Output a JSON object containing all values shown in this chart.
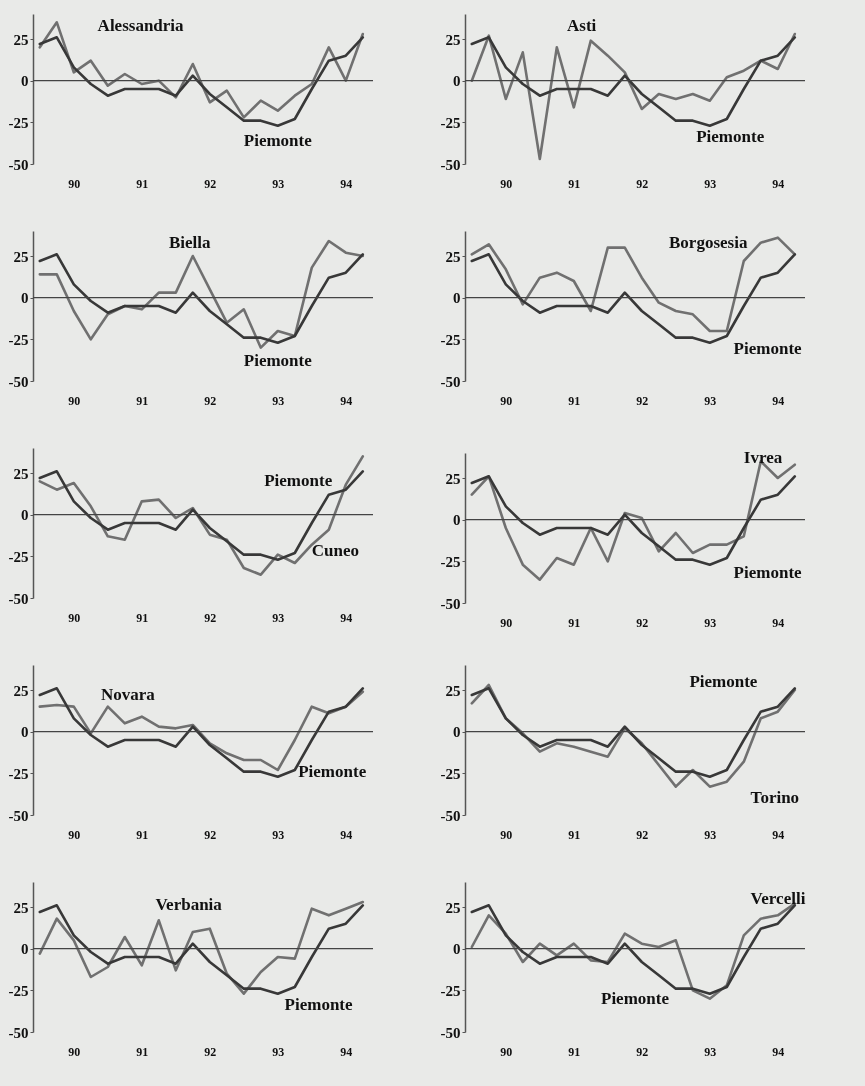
{
  "chart_data": [
    {
      "type": "line",
      "x": [
        90,
        90.25,
        90.5,
        90.75,
        91,
        91.25,
        91.5,
        91.75,
        92,
        92.25,
        92.5,
        92.75,
        93,
        93.25,
        93.5,
        93.75,
        94,
        94.25,
        94.5,
        94.75
      ],
      "xlim": [
        89.9,
        94.9
      ],
      "xticks": [
        {
          "value": 90.5,
          "label": "90"
        },
        {
          "value": 91.5,
          "label": "91"
        },
        {
          "value": 92.5,
          "label": "92"
        },
        {
          "value": 93.5,
          "label": "93"
        },
        {
          "value": 94.5,
          "label": "94"
        }
      ],
      "ylim": [
        -50,
        40
      ],
      "yticks": [
        -50,
        -25,
        0,
        25
      ],
      "ref_lines": [
        {
          "axis": "y",
          "value": 0
        }
      ],
      "grid": false,
      "legend": false,
      "series": [
        {
          "name": "Alessandria",
          "color": "#707070",
          "values": [
            20,
            35,
            5,
            12,
            -3,
            4,
            -2,
            0,
            -10,
            10,
            -13,
            -6,
            -22,
            -12,
            -18,
            -9,
            -2,
            20,
            0,
            28
          ]
        },
        {
          "name": "Piemonte",
          "color": "#383838",
          "values": [
            22,
            26,
            8,
            -2,
            -9,
            -5,
            -5,
            -5,
            -9,
            3,
            -8,
            -16,
            -24,
            -24,
            -27,
            -23,
            -5,
            12,
            15,
            26
          ]
        }
      ]
    },
    {
      "type": "line",
      "x": [
        90,
        90.25,
        90.5,
        90.75,
        91,
        91.25,
        91.5,
        91.75,
        92,
        92.25,
        92.5,
        92.75,
        93,
        93.25,
        93.5,
        93.75,
        94,
        94.25,
        94.5,
        94.75
      ],
      "xlim": [
        89.9,
        94.9
      ],
      "xticks": [
        {
          "value": 90.5,
          "label": "90"
        },
        {
          "value": 91.5,
          "label": "91"
        },
        {
          "value": 92.5,
          "label": "92"
        },
        {
          "value": 93.5,
          "label": "93"
        },
        {
          "value": 94.5,
          "label": "94"
        }
      ],
      "ylim": [
        -50,
        40
      ],
      "yticks": [
        -50,
        -25,
        0,
        25
      ],
      "ref_lines": [
        {
          "axis": "y",
          "value": 0
        }
      ],
      "grid": false,
      "legend": false,
      "series": [
        {
          "name": "Asti",
          "color": "#707070",
          "values": [
            0,
            27,
            -11,
            17,
            -47,
            20,
            -16,
            24,
            15,
            5,
            -17,
            -8,
            -11,
            -8,
            -12,
            2,
            6,
            12,
            7,
            28
          ]
        },
        {
          "name": "Piemonte",
          "color": "#383838",
          "values": [
            22,
            26,
            8,
            -2,
            -9,
            -5,
            -5,
            -5,
            -9,
            3,
            -8,
            -16,
            -24,
            -24,
            -27,
            -23,
            -5,
            12,
            15,
            26
          ]
        }
      ]
    },
    {
      "type": "line",
      "x": [
        90,
        90.25,
        90.5,
        90.75,
        91,
        91.25,
        91.5,
        91.75,
        92,
        92.25,
        92.5,
        92.75,
        93,
        93.25,
        93.5,
        93.75,
        94,
        94.25,
        94.5,
        94.75
      ],
      "xlim": [
        89.9,
        94.9
      ],
      "xticks": [
        {
          "value": 90.5,
          "label": "90"
        },
        {
          "value": 91.5,
          "label": "91"
        },
        {
          "value": 92.5,
          "label": "92"
        },
        {
          "value": 93.5,
          "label": "93"
        },
        {
          "value": 94.5,
          "label": "94"
        }
      ],
      "ylim": [
        -50,
        40
      ],
      "yticks": [
        -50,
        -25,
        0,
        25
      ],
      "ref_lines": [
        {
          "axis": "y",
          "value": 0
        }
      ],
      "grid": false,
      "legend": false,
      "series": [
        {
          "name": "Biella",
          "color": "#707070",
          "values": [
            14,
            14,
            -8,
            -25,
            -10,
            -5,
            -7,
            3,
            3,
            25,
            5,
            -15,
            -7,
            -30,
            -20,
            -23,
            18,
            34,
            27,
            25
          ]
        },
        {
          "name": "Piemonte",
          "color": "#383838",
          "values": [
            22,
            26,
            8,
            -2,
            -9,
            -5,
            -5,
            -5,
            -9,
            3,
            -8,
            -16,
            -24,
            -24,
            -27,
            -23,
            -5,
            12,
            15,
            26
          ]
        }
      ]
    },
    {
      "type": "line",
      "x": [
        90,
        90.25,
        90.5,
        90.75,
        91,
        91.25,
        91.5,
        91.75,
        92,
        92.25,
        92.5,
        92.75,
        93,
        93.25,
        93.5,
        93.75,
        94,
        94.25,
        94.5,
        94.75
      ],
      "xlim": [
        89.9,
        94.9
      ],
      "xticks": [
        {
          "value": 90.5,
          "label": "90"
        },
        {
          "value": 91.5,
          "label": "91"
        },
        {
          "value": 92.5,
          "label": "92"
        },
        {
          "value": 93.5,
          "label": "93"
        },
        {
          "value": 94.5,
          "label": "94"
        }
      ],
      "ylim": [
        -50,
        40
      ],
      "yticks": [
        -50,
        -25,
        0,
        25
      ],
      "ref_lines": [
        {
          "axis": "y",
          "value": 0
        }
      ],
      "grid": false,
      "legend": false,
      "series": [
        {
          "name": "Borgosesia",
          "color": "#707070",
          "values": [
            26,
            32,
            17,
            -4,
            12,
            15,
            10,
            -8,
            30,
            30,
            12,
            -3,
            -8,
            -10,
            -20,
            -20,
            22,
            33,
            36,
            26
          ]
        },
        {
          "name": "Piemonte",
          "color": "#383838",
          "values": [
            22,
            26,
            8,
            -2,
            -9,
            -5,
            -5,
            -5,
            -9,
            3,
            -8,
            -16,
            -24,
            -24,
            -27,
            -23,
            -5,
            12,
            15,
            26
          ]
        }
      ]
    },
    {
      "type": "line",
      "x": [
        90,
        90.25,
        90.5,
        90.75,
        91,
        91.25,
        91.5,
        91.75,
        92,
        92.25,
        92.5,
        92.75,
        93,
        93.25,
        93.5,
        93.75,
        94,
        94.25,
        94.5,
        94.75
      ],
      "xlim": [
        89.9,
        94.9
      ],
      "xticks": [
        {
          "value": 90.5,
          "label": "90"
        },
        {
          "value": 91.5,
          "label": "91"
        },
        {
          "value": 92.5,
          "label": "92"
        },
        {
          "value": 93.5,
          "label": "93"
        },
        {
          "value": 94.5,
          "label": "94"
        }
      ],
      "ylim": [
        -50,
        40
      ],
      "yticks": [
        -50,
        -25,
        0,
        25
      ],
      "ref_lines": [
        {
          "axis": "y",
          "value": 0
        }
      ],
      "grid": false,
      "legend": false,
      "series": [
        {
          "name": "Cuneo",
          "color": "#707070",
          "values": [
            20,
            15,
            19,
            5,
            -13,
            -15,
            8,
            9,
            -2,
            4,
            -12,
            -15,
            -32,
            -36,
            -24,
            -29,
            -18,
            -9,
            18,
            35
          ]
        },
        {
          "name": "Piemonte",
          "color": "#383838",
          "values": [
            22,
            26,
            8,
            -2,
            -9,
            -5,
            -5,
            -5,
            -9,
            3,
            -8,
            -16,
            -24,
            -24,
            -27,
            -23,
            -5,
            12,
            15,
            26
          ]
        }
      ]
    },
    {
      "type": "line",
      "x": [
        90,
        90.25,
        90.5,
        90.75,
        91,
        91.25,
        91.5,
        91.75,
        92,
        92.25,
        92.5,
        92.75,
        93,
        93.25,
        93.5,
        93.75,
        94,
        94.25,
        94.5,
        94.75
      ],
      "xlim": [
        89.9,
        94.9
      ],
      "xticks": [
        {
          "value": 90.5,
          "label": "90"
        },
        {
          "value": 91.5,
          "label": "91"
        },
        {
          "value": 92.5,
          "label": "92"
        },
        {
          "value": 93.5,
          "label": "93"
        },
        {
          "value": 94.5,
          "label": "94"
        }
      ],
      "ylim": [
        -50,
        40
      ],
      "yticks": [
        -50,
        -25,
        0,
        25
      ],
      "ref_lines": [
        {
          "axis": "y",
          "value": 0
        }
      ],
      "grid": false,
      "legend": false,
      "series": [
        {
          "name": "Ivrea",
          "color": "#707070",
          "values": [
            15,
            26,
            -5,
            -27,
            -36,
            -23,
            -27,
            -5,
            -25,
            4,
            1,
            -19,
            -8,
            -20,
            -15,
            -15,
            -10,
            35,
            25,
            33
          ]
        },
        {
          "name": "Piemonte",
          "color": "#383838",
          "values": [
            22,
            26,
            8,
            -2,
            -9,
            -5,
            -5,
            -5,
            -9,
            3,
            -8,
            -16,
            -24,
            -24,
            -27,
            -23,
            -5,
            12,
            15,
            26
          ]
        }
      ]
    },
    {
      "type": "line",
      "x": [
        90,
        90.25,
        90.5,
        90.75,
        91,
        91.25,
        91.5,
        91.75,
        92,
        92.25,
        92.5,
        92.75,
        93,
        93.25,
        93.5,
        93.75,
        94,
        94.25,
        94.5,
        94.75
      ],
      "xlim": [
        89.9,
        94.9
      ],
      "xticks": [
        {
          "value": 90.5,
          "label": "90"
        },
        {
          "value": 91.5,
          "label": "91"
        },
        {
          "value": 92.5,
          "label": "92"
        },
        {
          "value": 93.5,
          "label": "93"
        },
        {
          "value": 94.5,
          "label": "94"
        }
      ],
      "ylim": [
        -50,
        40
      ],
      "yticks": [
        -50,
        -25,
        0,
        25
      ],
      "ref_lines": [
        {
          "axis": "y",
          "value": 0
        }
      ],
      "grid": false,
      "legend": false,
      "series": [
        {
          "name": "Novara",
          "color": "#707070",
          "values": [
            15,
            16,
            15,
            -1,
            15,
            5,
            9,
            3,
            2,
            4,
            -7,
            -13,
            -17,
            -17,
            -23,
            -5,
            15,
            11,
            15,
            24
          ]
        },
        {
          "name": "Piemonte",
          "color": "#383838",
          "values": [
            22,
            26,
            8,
            -2,
            -9,
            -5,
            -5,
            -5,
            -9,
            3,
            -8,
            -16,
            -24,
            -24,
            -27,
            -23,
            -5,
            12,
            15,
            26
          ]
        }
      ]
    },
    {
      "type": "line",
      "x": [
        90,
        90.25,
        90.5,
        90.75,
        91,
        91.25,
        91.5,
        91.75,
        92,
        92.25,
        92.5,
        92.75,
        93,
        93.25,
        93.5,
        93.75,
        94,
        94.25,
        94.5,
        94.75
      ],
      "xlim": [
        89.9,
        94.9
      ],
      "xticks": [
        {
          "value": 90.5,
          "label": "90"
        },
        {
          "value": 91.5,
          "label": "91"
        },
        {
          "value": 92.5,
          "label": "92"
        },
        {
          "value": 93.5,
          "label": "93"
        },
        {
          "value": 94.5,
          "label": "94"
        }
      ],
      "ylim": [
        -50,
        40
      ],
      "yticks": [
        -50,
        -25,
        0,
        25
      ],
      "ref_lines": [
        {
          "axis": "y",
          "value": 0
        }
      ],
      "grid": false,
      "legend": false,
      "series": [
        {
          "name": "Torino",
          "color": "#707070",
          "values": [
            17,
            28,
            8,
            -1,
            -12,
            -7,
            -9,
            -12,
            -15,
            2,
            -7,
            -20,
            -33,
            -23,
            -33,
            -30,
            -18,
            8,
            12,
            25
          ]
        },
        {
          "name": "Piemonte",
          "color": "#383838",
          "values": [
            22,
            26,
            8,
            -2,
            -9,
            -5,
            -5,
            -5,
            -9,
            3,
            -8,
            -16,
            -24,
            -24,
            -27,
            -23,
            -5,
            12,
            15,
            26
          ]
        }
      ]
    },
    {
      "type": "line",
      "x": [
        90,
        90.25,
        90.5,
        90.75,
        91,
        91.25,
        91.5,
        91.75,
        92,
        92.25,
        92.5,
        92.75,
        93,
        93.25,
        93.5,
        93.75,
        94,
        94.25,
        94.5,
        94.75
      ],
      "xlim": [
        89.9,
        94.9
      ],
      "xticks": [
        {
          "value": 90.5,
          "label": "90"
        },
        {
          "value": 91.5,
          "label": "91"
        },
        {
          "value": 92.5,
          "label": "92"
        },
        {
          "value": 93.5,
          "label": "93"
        },
        {
          "value": 94.5,
          "label": "94"
        }
      ],
      "ylim": [
        -50,
        40
      ],
      "yticks": [
        -50,
        -25,
        0,
        25
      ],
      "ref_lines": [
        {
          "axis": "y",
          "value": 0
        }
      ],
      "grid": false,
      "legend": false,
      "series": [
        {
          "name": "Verbania",
          "color": "#707070",
          "values": [
            -3,
            18,
            5,
            -17,
            -11,
            7,
            -10,
            17,
            -13,
            10,
            12,
            -15,
            -27,
            -14,
            -5,
            -6,
            24,
            20,
            24,
            28
          ]
        },
        {
          "name": "Piemonte",
          "color": "#383838",
          "values": [
            22,
            26,
            8,
            -2,
            -9,
            -5,
            -5,
            -5,
            -9,
            3,
            -8,
            -16,
            -24,
            -24,
            -27,
            -23,
            -5,
            12,
            15,
            26
          ]
        }
      ]
    },
    {
      "type": "line",
      "x": [
        90,
        90.25,
        90.5,
        90.75,
        91,
        91.25,
        91.5,
        91.75,
        92,
        92.25,
        92.5,
        92.75,
        93,
        93.25,
        93.5,
        93.75,
        94,
        94.25,
        94.5,
        94.75
      ],
      "xlim": [
        89.9,
        94.9
      ],
      "xticks": [
        {
          "value": 90.5,
          "label": "90"
        },
        {
          "value": 91.5,
          "label": "91"
        },
        {
          "value": 92.5,
          "label": "92"
        },
        {
          "value": 93.5,
          "label": "93"
        },
        {
          "value": 94.5,
          "label": "94"
        }
      ],
      "ylim": [
        -50,
        40
      ],
      "yticks": [
        -50,
        -25,
        0,
        25
      ],
      "ref_lines": [
        {
          "axis": "y",
          "value": 0
        }
      ],
      "grid": false,
      "legend": false,
      "series": [
        {
          "name": "Vercelli",
          "color": "#707070",
          "values": [
            1,
            20,
            9,
            -8,
            3,
            -4,
            3,
            -7,
            -8,
            9,
            3,
            1,
            5,
            -25,
            -30,
            -22,
            8,
            18,
            20,
            27
          ]
        },
        {
          "name": "Piemonte",
          "color": "#383838",
          "values": [
            22,
            26,
            8,
            -2,
            -9,
            -5,
            -5,
            -5,
            -9,
            3,
            -8,
            -16,
            -24,
            -24,
            -27,
            -23,
            -5,
            12,
            15,
            26
          ]
        }
      ]
    }
  ]
}
